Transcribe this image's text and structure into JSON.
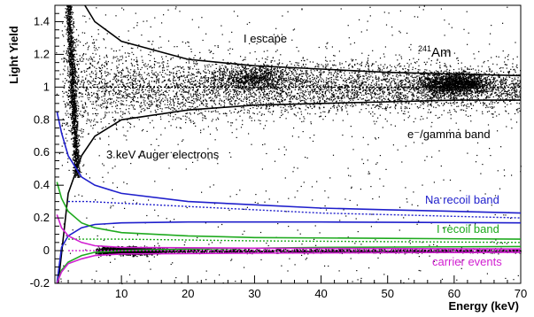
{
  "chart_data": {
    "type": "scatter",
    "xlabel": "Energy (keV)",
    "ylabel": "Light Yield",
    "xlim": [
      0,
      70
    ],
    "ylim": [
      -0.2,
      1.5
    ],
    "x_ticks": [
      "10",
      "20",
      "30",
      "40",
      "50",
      "60",
      "70"
    ],
    "y_ticks": [
      "-0.2",
      "0",
      "0.2",
      "0.4",
      "0.6",
      "0.8",
      "1",
      "1.2",
      "1.4"
    ],
    "grid": false,
    "annotations": [
      {
        "text": "I escape",
        "color": "#000000"
      },
      {
        "text": "Am",
        "superscript": "241",
        "color": "#000000"
      },
      {
        "text": "e⁻/gamma band",
        "color": "#000000"
      },
      {
        "text": "3 keV Auger electrons",
        "color": "#000000"
      },
      {
        "text": "Na recoil band",
        "color": "#1f1fcc"
      },
      {
        "text": "I recoil band",
        "color": "#1faa1f"
      },
      {
        "text": "carrier events",
        "color": "#d21fd2"
      }
    ],
    "bands": [
      {
        "name": "e⁻/gamma band",
        "color": "#000000",
        "center": [
          [
            2,
            1.0
          ],
          [
            10,
            1.0
          ],
          [
            30,
            1.0
          ],
          [
            50,
            1.0
          ],
          [
            70,
            1.0
          ]
        ],
        "upper": [
          [
            4.5,
            1.5
          ],
          [
            6,
            1.4
          ],
          [
            10,
            1.28
          ],
          [
            20,
            1.17
          ],
          [
            30,
            1.13
          ],
          [
            40,
            1.11
          ],
          [
            50,
            1.09
          ],
          [
            60,
            1.08
          ],
          [
            70,
            1.07
          ]
        ],
        "lower": [
          [
            0.5,
            -0.2
          ],
          [
            2,
            0.35
          ],
          [
            4,
            0.58
          ],
          [
            6,
            0.7
          ],
          [
            10,
            0.8
          ],
          [
            20,
            0.86
          ],
          [
            30,
            0.89
          ],
          [
            40,
            0.9
          ],
          [
            50,
            0.91
          ],
          [
            60,
            0.92
          ],
          [
            70,
            0.92
          ]
        ]
      },
      {
        "name": "Na recoil band",
        "color": "#1f1fcc",
        "center": [
          [
            2,
            0.3
          ],
          [
            5,
            0.3
          ],
          [
            10,
            0.29
          ],
          [
            20,
            0.27
          ],
          [
            30,
            0.25
          ],
          [
            40,
            0.23
          ],
          [
            50,
            0.22
          ],
          [
            60,
            0.21
          ],
          [
            70,
            0.2
          ]
        ],
        "upper": [
          [
            0.3,
            0.85
          ],
          [
            1,
            0.72
          ],
          [
            2,
            0.58
          ],
          [
            4,
            0.45
          ],
          [
            6,
            0.4
          ],
          [
            10,
            0.35
          ],
          [
            20,
            0.3
          ],
          [
            30,
            0.28
          ],
          [
            40,
            0.26
          ],
          [
            50,
            0.25
          ],
          [
            60,
            0.24
          ],
          [
            70,
            0.23
          ]
        ],
        "lower": [
          [
            0.3,
            -0.2
          ],
          [
            1,
            0.02
          ],
          [
            2,
            0.09
          ],
          [
            4,
            0.14
          ],
          [
            6,
            0.16
          ],
          [
            10,
            0.17
          ],
          [
            20,
            0.175
          ],
          [
            40,
            0.175
          ],
          [
            70,
            0.17
          ]
        ]
      },
      {
        "name": "I recoil band",
        "color": "#1faa1f",
        "center": [
          [
            2,
            0.07
          ],
          [
            10,
            0.07
          ],
          [
            30,
            0.06
          ],
          [
            50,
            0.055
          ],
          [
            70,
            0.05
          ]
        ],
        "upper": [
          [
            0.3,
            0.42
          ],
          [
            1,
            0.32
          ],
          [
            2,
            0.24
          ],
          [
            4,
            0.17
          ],
          [
            6,
            0.14
          ],
          [
            10,
            0.11
          ],
          [
            20,
            0.09
          ],
          [
            30,
            0.08
          ],
          [
            50,
            0.075
          ],
          [
            70,
            0.07
          ]
        ],
        "lower": [
          [
            0.3,
            -0.2
          ],
          [
            1,
            -0.12
          ],
          [
            2,
            -0.07
          ],
          [
            4,
            -0.03
          ],
          [
            6,
            -0.01
          ],
          [
            10,
            0.0
          ],
          [
            20,
            0.01
          ],
          [
            40,
            0.02
          ],
          [
            70,
            0.025
          ]
        ]
      },
      {
        "name": "carrier events",
        "color": "#d21fd2",
        "center": [
          [
            2,
            0.0
          ],
          [
            70,
            0.0
          ]
        ],
        "upper": [
          [
            0.3,
            0.22
          ],
          [
            1,
            0.14
          ],
          [
            2,
            0.09
          ],
          [
            4,
            0.05
          ],
          [
            6,
            0.03
          ],
          [
            10,
            0.02
          ],
          [
            30,
            0.015
          ],
          [
            70,
            0.01
          ]
        ],
        "lower": [
          [
            0.3,
            -0.2
          ],
          [
            1,
            -0.13
          ],
          [
            2,
            -0.08
          ],
          [
            4,
            -0.05
          ],
          [
            6,
            -0.03
          ],
          [
            10,
            -0.02
          ],
          [
            30,
            -0.015
          ],
          [
            70,
            -0.01
          ]
        ]
      }
    ],
    "scatter_clusters": [
      {
        "name": "e⁻/gamma band",
        "x_range": [
          1,
          70
        ],
        "y_center": 1.0,
        "density": "high"
      },
      {
        "name": "241Am peak",
        "x_center": 60,
        "y_center": 1.02,
        "density": "very high"
      },
      {
        "name": "I escape",
        "x_center": 30,
        "y_center": 1.06,
        "density": "high"
      },
      {
        "name": "3 keV Auger electrons",
        "x_center": 3,
        "y_range": [
          0.5,
          1.5
        ],
        "density": "very high"
      },
      {
        "name": "low-energy carrier population",
        "x_range": [
          6,
          20
        ],
        "y_center": 0.0,
        "density": "very high"
      }
    ]
  }
}
